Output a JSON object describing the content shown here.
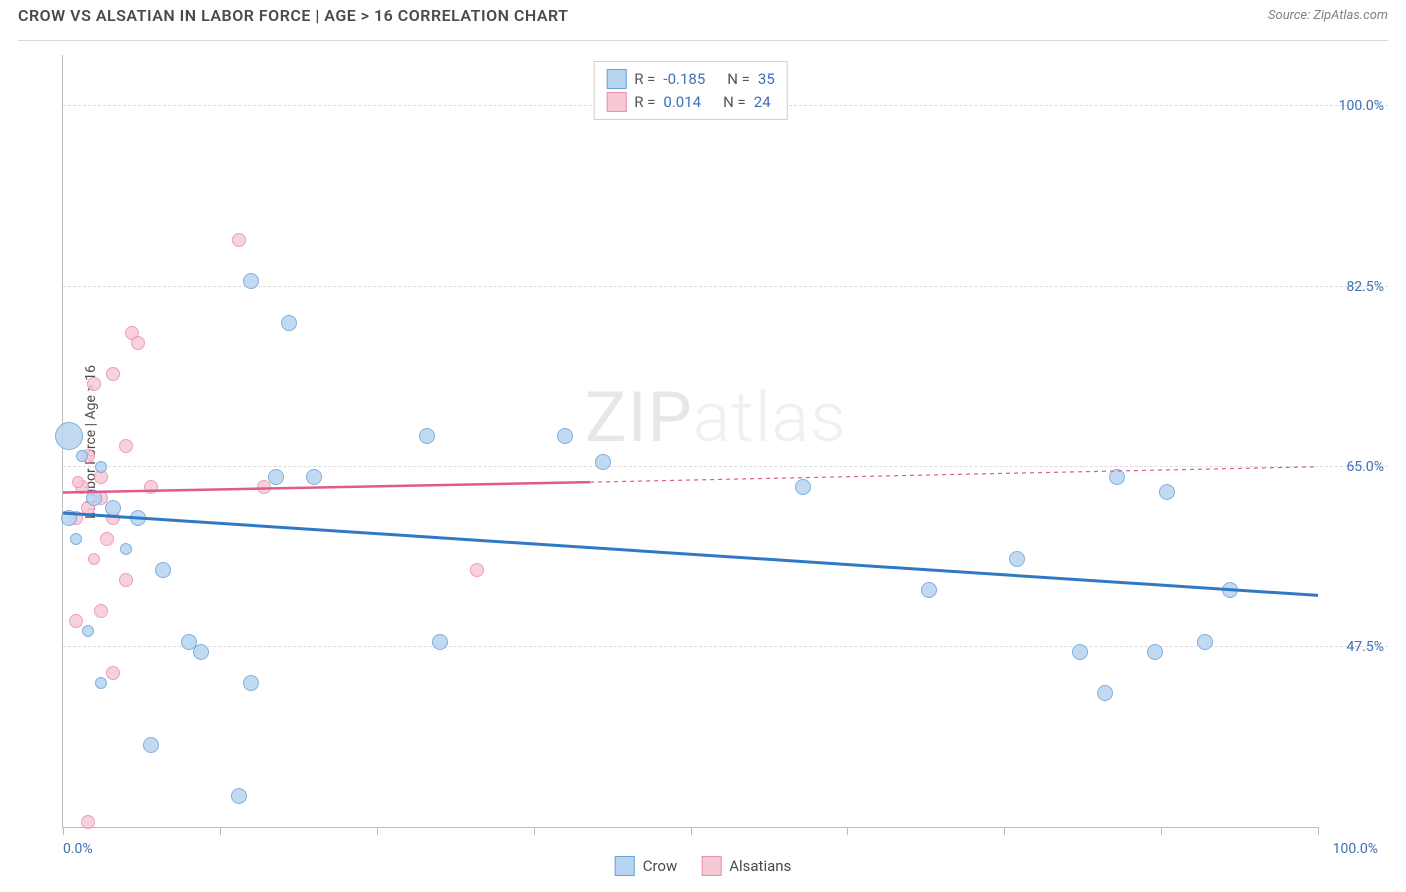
{
  "header": {
    "title": "CROW VS ALSATIAN IN LABOR FORCE | AGE > 16 CORRELATION CHART",
    "source": "Source: ZipAtlas.com"
  },
  "watermark": {
    "bold": "ZIP",
    "light": "atlas"
  },
  "chart": {
    "type": "scatter",
    "ylabel": "In Labor Force | Age > 16",
    "xlim": [
      0,
      100
    ],
    "ylim": [
      30,
      105
    ],
    "y_gridlines": [
      47.5,
      65.0,
      82.5,
      100.0
    ],
    "y_tick_labels": [
      "47.5%",
      "65.0%",
      "82.5%",
      "100.0%"
    ],
    "x_ticks": [
      0,
      12.5,
      25,
      37.5,
      50,
      62.5,
      75,
      87.5,
      100
    ],
    "x_label_min": "0.0%",
    "x_label_max": "100.0%",
    "series": {
      "crow": {
        "label": "Crow",
        "fill": "#b7d4f0",
        "stroke": "#6aa3d8",
        "line_stroke": "#2f78c4",
        "r_value": "-0.185",
        "n_value": "35",
        "trend": {
          "x1": 0,
          "y1": 60.5,
          "x2": 100,
          "y2": 52.5
        },
        "points": [
          {
            "x": 0.5,
            "y": 68,
            "r": 14
          },
          {
            "x": 0.5,
            "y": 60,
            "r": 8
          },
          {
            "x": 2.5,
            "y": 62,
            "r": 8
          },
          {
            "x": 4,
            "y": 61,
            "r": 8
          },
          {
            "x": 3,
            "y": 65,
            "r": 6
          },
          {
            "x": 6,
            "y": 60,
            "r": 8
          },
          {
            "x": 7,
            "y": 38,
            "r": 8
          },
          {
            "x": 8,
            "y": 55,
            "r": 8
          },
          {
            "x": 10,
            "y": 48,
            "r": 8
          },
          {
            "x": 11,
            "y": 47,
            "r": 8
          },
          {
            "x": 14,
            "y": 33,
            "r": 8
          },
          {
            "x": 15,
            "y": 83,
            "r": 8
          },
          {
            "x": 15,
            "y": 44,
            "r": 8
          },
          {
            "x": 17,
            "y": 64,
            "r": 8
          },
          {
            "x": 18,
            "y": 79,
            "r": 8
          },
          {
            "x": 20,
            "y": 64,
            "r": 8
          },
          {
            "x": 29,
            "y": 68,
            "r": 8
          },
          {
            "x": 30,
            "y": 48,
            "r": 8
          },
          {
            "x": 40,
            "y": 68,
            "r": 8
          },
          {
            "x": 43,
            "y": 65.5,
            "r": 8
          },
          {
            "x": 59,
            "y": 63,
            "r": 8
          },
          {
            "x": 69,
            "y": 53,
            "r": 8
          },
          {
            "x": 76,
            "y": 56,
            "r": 8
          },
          {
            "x": 81,
            "y": 47,
            "r": 8
          },
          {
            "x": 83,
            "y": 43,
            "r": 8
          },
          {
            "x": 84,
            "y": 64,
            "r": 8
          },
          {
            "x": 87,
            "y": 47,
            "r": 8
          },
          {
            "x": 88,
            "y": 62.5,
            "r": 8
          },
          {
            "x": 91,
            "y": 48,
            "r": 8
          },
          {
            "x": 93,
            "y": 53,
            "r": 8
          },
          {
            "x": 2,
            "y": 49,
            "r": 6
          },
          {
            "x": 3,
            "y": 44,
            "r": 6
          },
          {
            "x": 1,
            "y": 58,
            "r": 6
          },
          {
            "x": 5,
            "y": 57,
            "r": 6
          },
          {
            "x": 1.5,
            "y": 66,
            "r": 6
          }
        ]
      },
      "alsatians": {
        "label": "Alsatians",
        "fill": "#f6c9d5",
        "stroke": "#e98fb0",
        "line_stroke": "#e05a8a",
        "r_value": "0.014",
        "n_value": "24",
        "trend_solid": {
          "x1": 0,
          "y1": 62.5,
          "x2": 42,
          "y2": 63.5
        },
        "trend_dashed": {
          "x1": 42,
          "y1": 63.5,
          "x2": 100,
          "y2": 65
        },
        "points": [
          {
            "x": 1,
            "y": 60,
            "r": 7
          },
          {
            "x": 1.5,
            "y": 63,
            "r": 7
          },
          {
            "x": 2,
            "y": 66,
            "r": 7
          },
          {
            "x": 2,
            "y": 61,
            "r": 7
          },
          {
            "x": 2.5,
            "y": 73,
            "r": 7
          },
          {
            "x": 3,
            "y": 62,
            "r": 7
          },
          {
            "x": 3,
            "y": 64,
            "r": 7
          },
          {
            "x": 3.5,
            "y": 58,
            "r": 7
          },
          {
            "x": 4,
            "y": 60,
            "r": 7
          },
          {
            "x": 4,
            "y": 74,
            "r": 7
          },
          {
            "x": 5,
            "y": 67,
            "r": 7
          },
          {
            "x": 5.5,
            "y": 78,
            "r": 7
          },
          {
            "x": 5,
            "y": 54,
            "r": 7
          },
          {
            "x": 6,
            "y": 77,
            "r": 7
          },
          {
            "x": 7,
            "y": 63,
            "r": 7
          },
          {
            "x": 1,
            "y": 50,
            "r": 7
          },
          {
            "x": 2,
            "y": 30.5,
            "r": 7
          },
          {
            "x": 3,
            "y": 51,
            "r": 7
          },
          {
            "x": 4,
            "y": 45,
            "r": 7
          },
          {
            "x": 14,
            "y": 87,
            "r": 7
          },
          {
            "x": 16,
            "y": 63,
            "r": 7
          },
          {
            "x": 33,
            "y": 55,
            "r": 7
          },
          {
            "x": 2.5,
            "y": 56,
            "r": 6
          },
          {
            "x": 1.2,
            "y": 63.5,
            "r": 6
          }
        ]
      }
    }
  }
}
